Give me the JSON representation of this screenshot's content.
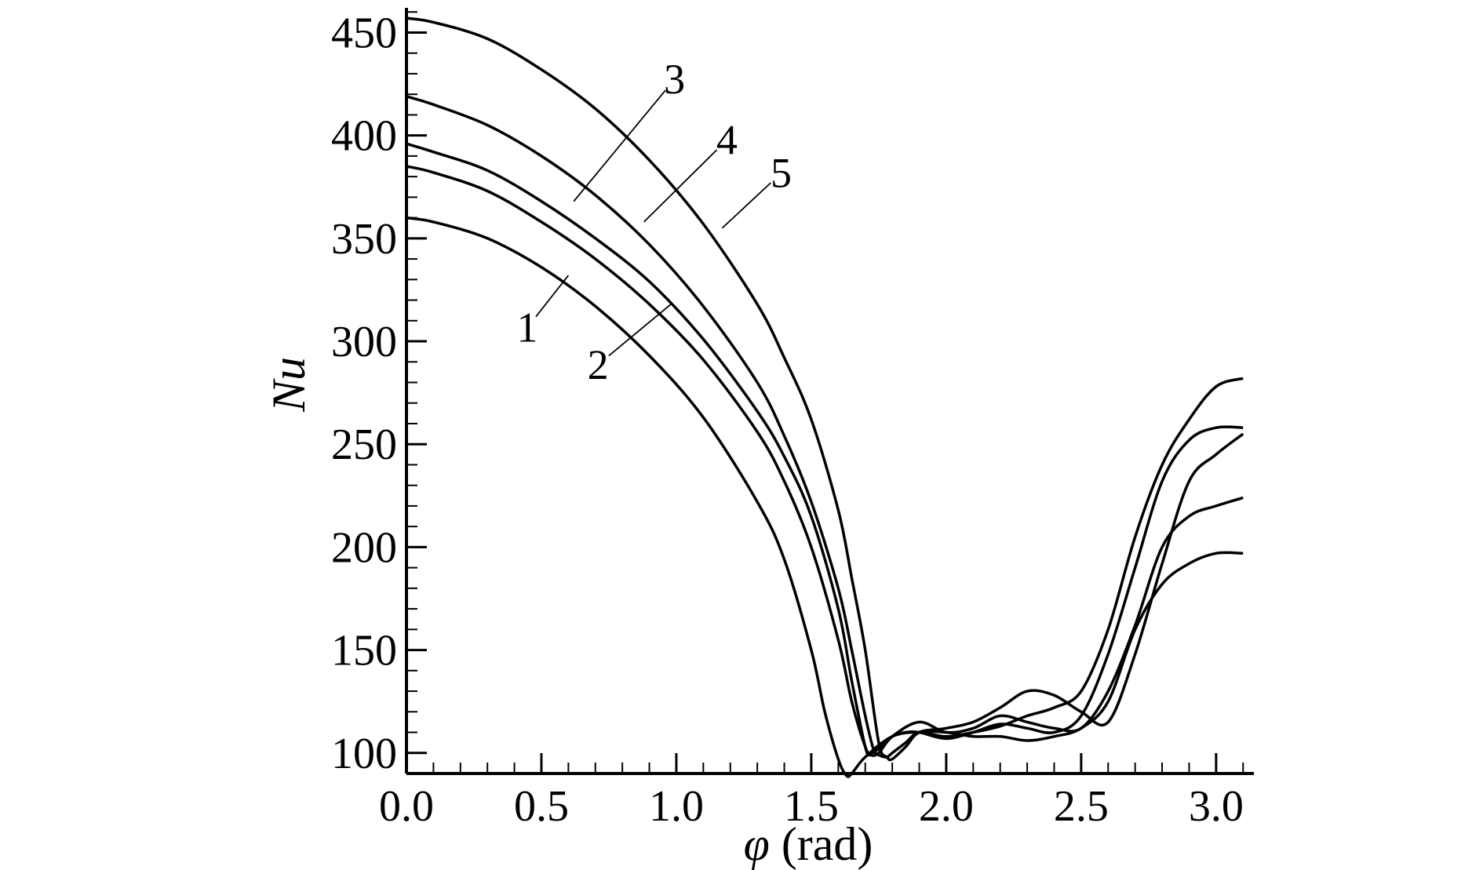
{
  "chart_data": {
    "type": "line",
    "title": "",
    "xlabel": {
      "symbol": "φ",
      "unit": " (rad)"
    },
    "ylabel": "Nu",
    "xlim": [
      0.0,
      3.14
    ],
    "ylim": [
      90,
      462
    ],
    "x_ticks": [
      0.0,
      0.5,
      1.0,
      1.5,
      2.0,
      2.5,
      3.0
    ],
    "x_tick_labels": [
      "0.0",
      "0.5",
      "1.0",
      "1.5",
      "2.0",
      "2.5",
      "3.0"
    ],
    "y_ticks": [
      100,
      150,
      200,
      250,
      300,
      350,
      400,
      450
    ],
    "y_tick_labels": [
      "100",
      "150",
      "200",
      "250",
      "300",
      "350",
      "400",
      "450"
    ],
    "grid": false,
    "legend": "none",
    "series": [
      {
        "name": "1",
        "x": [
          0,
          0.1,
          0.3,
          0.5,
          0.7,
          0.9,
          1.1,
          1.3,
          1.4,
          1.5,
          1.55,
          1.6,
          1.63,
          1.65,
          1.7,
          1.8,
          1.9,
          2.0,
          2.1,
          2.2,
          2.3,
          2.4,
          2.5,
          2.6,
          2.7,
          2.8,
          2.9,
          3.0,
          3.1
        ],
        "y": [
          360,
          358,
          350,
          336,
          317,
          293,
          263,
          222,
          194,
          150,
          120,
          97,
          89,
          90,
          98,
          108,
          110,
          108,
          110,
          113,
          118,
          122,
          130,
          160,
          205,
          240,
          262,
          278,
          282
        ]
      },
      {
        "name": "2",
        "x": [
          0,
          0.1,
          0.3,
          0.5,
          0.7,
          0.9,
          1.1,
          1.3,
          1.4,
          1.5,
          1.6,
          1.65,
          1.7,
          1.72,
          1.75,
          1.8,
          1.85,
          1.9,
          2.0,
          2.1,
          2.2,
          2.3,
          2.4,
          2.5,
          2.6,
          2.7,
          2.8,
          2.9,
          3.0,
          3.1
        ],
        "y": [
          385,
          382,
          373,
          358,
          340,
          318,
          291,
          256,
          232,
          200,
          155,
          125,
          103,
          100,
          102,
          108,
          110,
          110,
          107,
          110,
          114,
          112,
          110,
          118,
          148,
          190,
          232,
          252,
          258,
          258
        ]
      },
      {
        "name": "3",
        "x": [
          0,
          0.1,
          0.3,
          0.5,
          0.7,
          0.9,
          1.1,
          1.3,
          1.4,
          1.5,
          1.6,
          1.65,
          1.7,
          1.72,
          1.75,
          1.8,
          1.9,
          2.0,
          2.1,
          2.2,
          2.3,
          2.4,
          2.5,
          2.6,
          2.7,
          2.8,
          2.9,
          3.0,
          3.1
        ],
        "y": [
          396,
          392,
          383,
          368,
          350,
          329,
          301,
          266,
          244,
          215,
          170,
          135,
          103,
          99,
          100,
          108,
          115,
          110,
          112,
          118,
          115,
          112,
          112,
          130,
          162,
          200,
          215,
          220,
          224
        ]
      },
      {
        "name": "4",
        "x": [
          0,
          0.1,
          0.3,
          0.5,
          0.7,
          0.9,
          1.1,
          1.3,
          1.4,
          1.5,
          1.6,
          1.65,
          1.7,
          1.73,
          1.75,
          1.78,
          1.8,
          1.85,
          1.9,
          2.0,
          2.1,
          2.2,
          2.3,
          2.4,
          2.5,
          2.6,
          2.7,
          2.8,
          2.9,
          3.0,
          3.1
        ],
        "y": [
          419,
          415,
          405,
          390,
          371,
          347,
          317,
          280,
          254,
          222,
          180,
          150,
          118,
          102,
          99,
          98,
          100,
          105,
          110,
          110,
          108,
          108,
          106,
          108,
          112,
          125,
          160,
          182,
          192,
          197,
          197
        ]
      },
      {
        "name": "5",
        "x": [
          0,
          0.1,
          0.3,
          0.5,
          0.7,
          0.9,
          1.1,
          1.3,
          1.4,
          1.5,
          1.6,
          1.65,
          1.7,
          1.75,
          1.78,
          1.8,
          1.85,
          1.9,
          2.0,
          2.1,
          2.2,
          2.3,
          2.4,
          2.5,
          2.6,
          2.7,
          2.8,
          2.9,
          3.0,
          3.1
        ],
        "y": [
          457,
          455,
          447,
          432,
          413,
          388,
          357,
          318,
          292,
          262,
          218,
          185,
          150,
          105,
          98,
          97,
          103,
          110,
          112,
          115,
          122,
          130,
          128,
          120,
          115,
          148,
          192,
          232,
          245,
          255
        ]
      }
    ],
    "annotations": [
      {
        "text": "1",
        "series": "1",
        "leader_from": [
          0.6,
          332
        ],
        "leader_to": [
          0.48,
          312
        ]
      },
      {
        "text": "2",
        "series": "2",
        "leader_from": [
          0.98,
          318
        ],
        "leader_to": [
          0.75,
          293
        ]
      },
      {
        "text": "3",
        "series": "3",
        "leader_from": [
          0.62,
          368
        ],
        "leader_to": [
          0.96,
          422
        ]
      },
      {
        "text": "4",
        "series": "4",
        "leader_from": [
          0.88,
          358
        ],
        "leader_to": [
          1.15,
          393
        ]
      },
      {
        "text": "5",
        "series": "5",
        "leader_from": [
          1.17,
          355
        ],
        "leader_to": [
          1.35,
          377
        ]
      }
    ]
  }
}
